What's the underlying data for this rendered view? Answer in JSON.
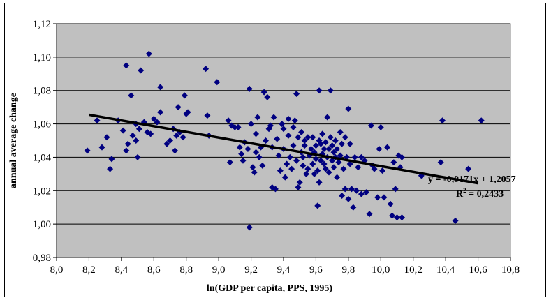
{
  "chart_data": {
    "type": "scatter",
    "title": "",
    "xlabel": "ln(GDP per capita, PPS, 1995)",
    "ylabel": "annual average change",
    "xlim": [
      8.0,
      10.8
    ],
    "ylim": [
      0.98,
      1.12
    ],
    "x_ticks": [
      "8,0",
      "8,2",
      "8,4",
      "8,6",
      "8,8",
      "9,0",
      "9,2",
      "9,4",
      "9,6",
      "9,8",
      "10,0",
      "10,2",
      "10,4",
      "10,6",
      "10,8"
    ],
    "y_ticks": [
      "0,98",
      "1,00",
      "1,02",
      "1,04",
      "1,06",
      "1,08",
      "1,10",
      "1,12"
    ],
    "grid": "horizontal",
    "legend": "none",
    "colors": {
      "plot_background": "#c0c0c0",
      "marker": "#000080",
      "trendline": "#000000",
      "gridline": "#000000"
    },
    "marker": "diamond",
    "trendline": {
      "slope": -0.0171,
      "intercept": 1.2057,
      "x_range": [
        8.2,
        10.6
      ]
    },
    "annotations": {
      "equation": "y = -0,0171x + 1,2057",
      "r2_prefix": "R",
      "r2_suffix": " = 0,2433"
    },
    "series": [
      {
        "points": [
          [
            8.19,
            1.044
          ],
          [
            8.25,
            1.062
          ],
          [
            8.28,
            1.046
          ],
          [
            8.31,
            1.052
          ],
          [
            8.33,
            1.033
          ],
          [
            8.34,
            1.039
          ],
          [
            8.38,
            1.062
          ],
          [
            8.41,
            1.056
          ],
          [
            8.43,
            1.044
          ],
          [
            8.43,
            1.095
          ],
          [
            8.44,
            1.048
          ],
          [
            8.46,
            1.077
          ],
          [
            8.47,
            1.053
          ],
          [
            8.49,
            1.06
          ],
          [
            8.49,
            1.05
          ],
          [
            8.5,
            1.04
          ],
          [
            8.51,
            1.057
          ],
          [
            8.52,
            1.092
          ],
          [
            8.54,
            1.061
          ],
          [
            8.56,
            1.055
          ],
          [
            8.57,
            1.102
          ],
          [
            8.58,
            1.054
          ],
          [
            8.6,
            1.063
          ],
          [
            8.62,
            1.061
          ],
          [
            8.64,
            1.067
          ],
          [
            8.64,
            1.082
          ],
          [
            8.68,
            1.048
          ],
          [
            8.7,
            1.05
          ],
          [
            8.72,
            1.057
          ],
          [
            8.73,
            1.044
          ],
          [
            8.74,
            1.053
          ],
          [
            8.75,
            1.07
          ],
          [
            8.76,
            1.055
          ],
          [
            8.78,
            1.052
          ],
          [
            8.79,
            1.077
          ],
          [
            8.8,
            1.066
          ],
          [
            8.81,
            1.067
          ],
          [
            8.92,
            1.093
          ],
          [
            8.93,
            1.065
          ],
          [
            8.94,
            1.053
          ],
          [
            8.99,
            1.085
          ],
          [
            9.06,
            1.062
          ],
          [
            9.07,
            1.037
          ],
          [
            9.08,
            1.059
          ],
          [
            9.1,
            1.058
          ],
          [
            9.12,
            1.058
          ],
          [
            9.13,
            1.046
          ],
          [
            9.14,
            1.042
          ],
          [
            9.15,
            1.038
          ],
          [
            9.16,
            1.049
          ],
          [
            9.18,
            1.045
          ],
          [
            9.19,
            0.998
          ],
          [
            9.19,
            1.081
          ],
          [
            9.2,
            1.06
          ],
          [
            9.21,
            1.034
          ],
          [
            9.22,
            1.031
          ],
          [
            9.23,
            1.043
          ],
          [
            9.23,
            1.054
          ],
          [
            9.24,
            1.064
          ],
          [
            9.25,
            1.04
          ],
          [
            9.26,
            1.046
          ],
          [
            9.27,
            1.035
          ],
          [
            9.28,
            1.079
          ],
          [
            9.29,
            1.05
          ],
          [
            9.3,
            1.076
          ],
          [
            9.31,
            1.057
          ],
          [
            9.32,
            1.059
          ],
          [
            9.33,
            1.022
          ],
          [
            9.33,
            1.046
          ],
          [
            9.34,
            1.064
          ],
          [
            9.35,
            1.021
          ],
          [
            9.36,
            1.051
          ],
          [
            9.37,
            1.041
          ],
          [
            9.38,
            1.032
          ],
          [
            9.39,
            1.06
          ],
          [
            9.4,
            1.057
          ],
          [
            9.4,
            1.045
          ],
          [
            9.41,
            1.028
          ],
          [
            9.42,
            1.036
          ],
          [
            9.43,
            1.053
          ],
          [
            9.43,
            1.063
          ],
          [
            9.44,
            1.04
          ],
          [
            9.45,
            1.033
          ],
          [
            9.46,
            1.047
          ],
          [
            9.46,
            1.058
          ],
          [
            9.47,
            1.062
          ],
          [
            9.48,
            1.038
          ],
          [
            9.48,
            1.078
          ],
          [
            9.49,
            1.022
          ],
          [
            9.49,
            1.052
          ],
          [
            9.5,
            1.025
          ],
          [
            9.51,
            1.043
          ],
          [
            9.51,
            1.055
          ],
          [
            9.52,
            1.035
          ],
          [
            9.52,
            1.04
          ],
          [
            9.53,
            1.047
          ],
          [
            9.53,
            1.05
          ],
          [
            9.54,
            1.03
          ],
          [
            9.55,
            1.033
          ],
          [
            9.55,
            1.052
          ],
          [
            9.56,
            1.041
          ],
          [
            9.57,
            1.045
          ],
          [
            9.58,
            1.036
          ],
          [
            9.58,
            1.052
          ],
          [
            9.59,
            1.03
          ],
          [
            9.59,
            1.043
          ],
          [
            9.6,
            1.039
          ],
          [
            9.6,
            1.047
          ],
          [
            9.61,
            1.011
          ],
          [
            9.61,
            1.032
          ],
          [
            9.62,
            1.025
          ],
          [
            9.62,
            1.05
          ],
          [
            9.62,
            1.08
          ],
          [
            9.63,
            1.038
          ],
          [
            9.63,
            1.048
          ],
          [
            9.64,
            1.042
          ],
          [
            9.64,
            1.054
          ],
          [
            9.65,
            1.036
          ],
          [
            9.65,
            1.045
          ],
          [
            9.66,
            1.033
          ],
          [
            9.66,
            1.049
          ],
          [
            9.67,
            1.04
          ],
          [
            9.67,
            1.064
          ],
          [
            9.68,
            1.045
          ],
          [
            9.68,
            1.031
          ],
          [
            9.69,
            1.052
          ],
          [
            9.69,
            1.08
          ],
          [
            9.7,
            1.038
          ],
          [
            9.7,
            1.047
          ],
          [
            9.71,
            1.043
          ],
          [
            9.71,
            1.034
          ],
          [
            9.72,
            1.05
          ],
          [
            9.72,
            1.04
          ],
          [
            9.73,
            1.028
          ],
          [
            9.73,
            1.045
          ],
          [
            9.74,
            1.037
          ],
          [
            9.75,
            1.055
          ],
          [
            9.75,
            1.041
          ],
          [
            9.76,
            1.017
          ],
          [
            9.76,
            1.048
          ],
          [
            9.77,
            1.033
          ],
          [
            9.78,
            1.021
          ],
          [
            9.78,
            1.052
          ],
          [
            9.79,
            1.04
          ],
          [
            9.8,
            1.015
          ],
          [
            9.8,
            1.069
          ],
          [
            9.81,
            1.036
          ],
          [
            9.81,
            1.048
          ],
          [
            9.82,
            1.021
          ],
          [
            9.83,
            1.01
          ],
          [
            9.84,
            1.04
          ],
          [
            9.85,
            1.02
          ],
          [
            9.86,
            1.034
          ],
          [
            9.88,
            1.018
          ],
          [
            9.88,
            1.04
          ],
          [
            9.9,
            1.038
          ],
          [
            9.91,
            1.019
          ],
          [
            9.93,
            1.006
          ],
          [
            9.94,
            1.059
          ],
          [
            9.95,
            1.035
          ],
          [
            9.96,
            1.033
          ],
          [
            9.98,
            1.016
          ],
          [
            9.99,
            1.045
          ],
          [
            10.0,
            1.058
          ],
          [
            10.01,
            1.032
          ],
          [
            10.02,
            1.016
          ],
          [
            10.04,
            1.046
          ],
          [
            10.06,
            1.012
          ],
          [
            10.07,
            1.005
          ],
          [
            10.08,
            1.037
          ],
          [
            10.09,
            1.021
          ],
          [
            10.1,
            1.004
          ],
          [
            10.11,
            1.041
          ],
          [
            10.12,
            1.034
          ],
          [
            10.13,
            1.004
          ],
          [
            10.13,
            1.04
          ],
          [
            10.25,
            1.029
          ],
          [
            10.37,
            1.037
          ],
          [
            10.38,
            1.062
          ],
          [
            10.46,
            1.002
          ],
          [
            10.54,
            1.033
          ],
          [
            10.62,
            1.062
          ]
        ]
      }
    ]
  }
}
